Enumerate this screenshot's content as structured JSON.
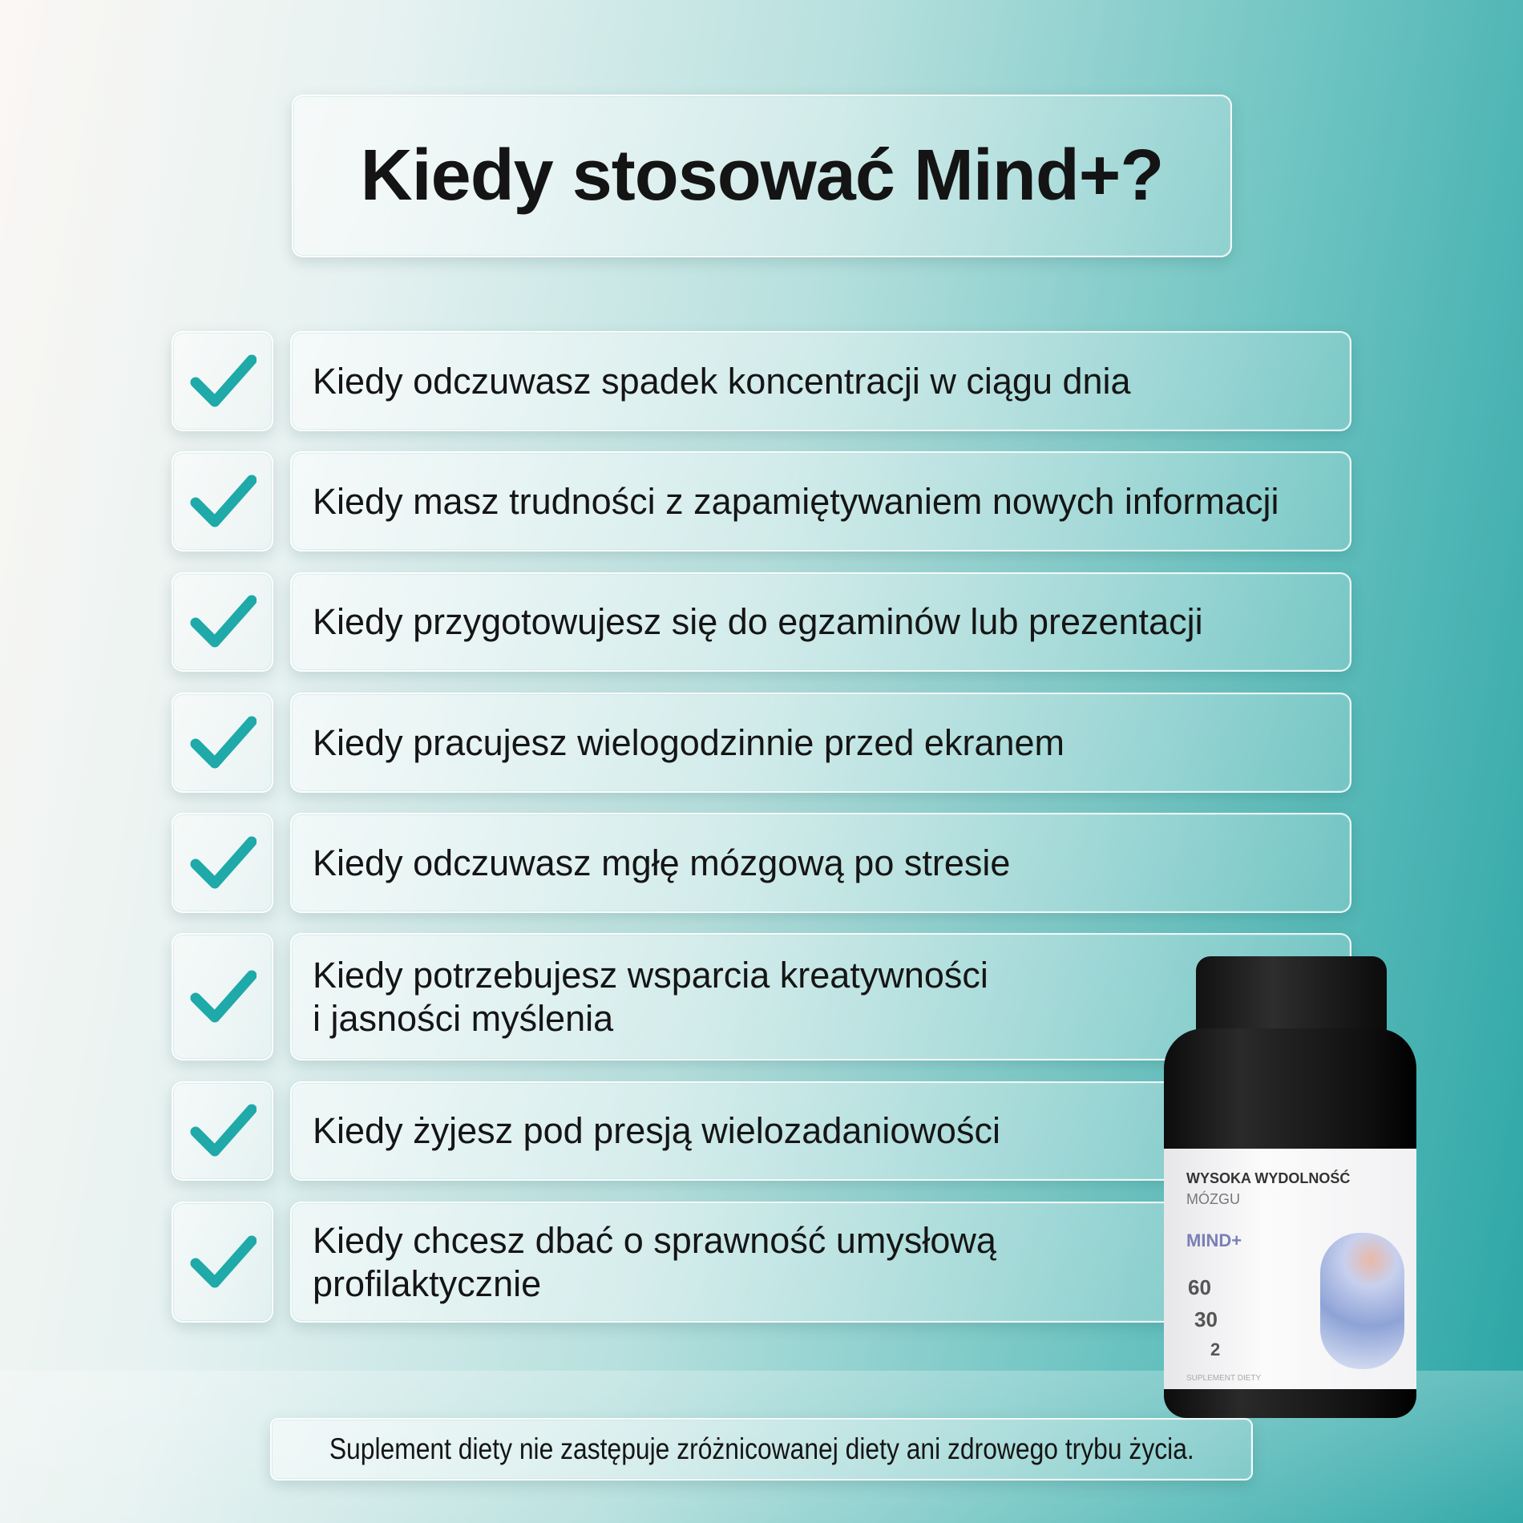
{
  "title": "Kiedy stosować Mind+?",
  "accent_color": "#1fa9a9",
  "items": [
    {
      "icon": "check-icon",
      "label": "Kiedy odczuwasz spadek koncentracji w ciągu dnia"
    },
    {
      "icon": "check-icon",
      "label": "Kiedy masz trudności z zapamiętywaniem nowych informacji"
    },
    {
      "icon": "check-icon",
      "label": "Kiedy przygotowujesz się do egzaminów lub prezentacji"
    },
    {
      "icon": "check-icon",
      "label": "Kiedy pracujesz wielogodzinnie przed ekranem"
    },
    {
      "icon": "check-icon",
      "label": "Kiedy odczuwasz mgłę mózgową po stresie"
    },
    {
      "icon": "check-icon",
      "label": "Kiedy potrzebujesz wsparcia kreatywności\ni jasności myślenia"
    },
    {
      "icon": "check-icon",
      "label": "Kiedy żyjesz pod presją wielozadaniowości"
    },
    {
      "icon": "check-icon",
      "label": "Kiedy chcesz dbać o sprawność umysłową\nprofilaktycznie"
    }
  ],
  "product": {
    "headline": "WYSOKA WYDOLNOŚĆ",
    "subline": "MÓZGU",
    "name": "MIND+",
    "stat1": "60",
    "stat2": "30",
    "stat3": "2",
    "category": "SUPLEMENT DIETY"
  },
  "footer": "Suplement diety nie zastępuje zróżnicowanej diety ani zdrowego trybu życia."
}
